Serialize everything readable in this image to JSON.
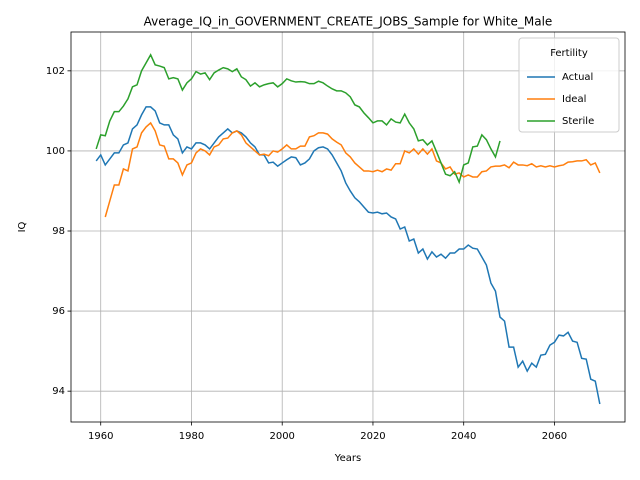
{
  "chart_data": {
    "type": "line",
    "title": "Average_IQ_in_GOVERNMENT_CREATE_JOBS_Sample for White_Male",
    "xlabel": "Years",
    "ylabel": "IQ",
    "x": [
      1959,
      1960,
      1961,
      1962,
      1963,
      1964,
      1965,
      1966,
      1967,
      1968,
      1969,
      1970,
      1971,
      1972,
      1973,
      1974,
      1975,
      1976,
      1977,
      1978,
      1979,
      1980,
      1981,
      1982,
      1983,
      1984,
      1985,
      1986,
      1987,
      1988,
      1989,
      1990,
      1991,
      1992,
      1993,
      1994,
      1995,
      1996,
      1997,
      1998,
      1999,
      2000,
      2001,
      2002,
      2003,
      2004,
      2005,
      2006,
      2007,
      2008,
      2009,
      2010,
      2011,
      2012,
      2013,
      2014,
      2015,
      2016,
      2017,
      2018,
      2019,
      2020,
      2021,
      2022,
      2023,
      2024,
      2025,
      2026,
      2027,
      2028,
      2029,
      2030,
      2031,
      2032,
      2033,
      2034,
      2035,
      2036,
      2037,
      2038,
      2039,
      2040,
      2041,
      2042,
      2043,
      2044,
      2045,
      2046,
      2047,
      2048,
      2049,
      2050,
      2051,
      2052,
      2053,
      2054,
      2055,
      2056,
      2057,
      2058,
      2059,
      2060,
      2061,
      2062,
      2063,
      2064,
      2065,
      2066,
      2067,
      2068,
      2069,
      2070
    ],
    "series": [
      {
        "name": "Actual",
        "color": "#1f77b4",
        "values": [
          99.75,
          99.9,
          99.65,
          99.8,
          99.95,
          99.95,
          100.15,
          100.2,
          100.55,
          100.65,
          100.9,
          101.1,
          101.1,
          101.0,
          100.7,
          100.65,
          100.65,
          100.4,
          100.3,
          99.95,
          100.1,
          100.05,
          100.2,
          100.2,
          100.15,
          100.05,
          100.2,
          100.35,
          100.45,
          100.55,
          100.45,
          100.5,
          100.45,
          100.35,
          100.2,
          100.1,
          99.9,
          99.9,
          99.7,
          99.72,
          99.62,
          99.7,
          99.78,
          99.85,
          99.83,
          99.65,
          99.7,
          99.8,
          100.0,
          100.08,
          100.1,
          100.05,
          99.9,
          99.7,
          99.5,
          99.2,
          99.0,
          98.83,
          98.73,
          98.6,
          98.47,
          98.45,
          98.47,
          98.43,
          98.45,
          98.35,
          98.3,
          98.05,
          98.1,
          97.75,
          97.8,
          97.45,
          97.55,
          97.3,
          97.48,
          97.35,
          97.42,
          97.32,
          97.45,
          97.45,
          97.55,
          97.55,
          97.65,
          97.57,
          97.55,
          97.35,
          97.15,
          96.7,
          96.5,
          95.85,
          95.75,
          95.1,
          95.1,
          94.6,
          94.75,
          94.5,
          94.7,
          94.6,
          94.9,
          94.92,
          95.15,
          95.22,
          95.4,
          95.38,
          95.47,
          95.25,
          95.22,
          94.82,
          94.8,
          94.3,
          94.25,
          93.68
        ]
      },
      {
        "name": "Ideal",
        "color": "#ff7f0e",
        "values": [
          null,
          null,
          98.35,
          98.75,
          99.15,
          99.15,
          99.55,
          99.5,
          100.05,
          100.1,
          100.45,
          100.6,
          100.7,
          100.5,
          100.15,
          100.12,
          99.8,
          99.8,
          99.7,
          99.4,
          99.65,
          99.7,
          99.95,
          100.05,
          100.0,
          99.9,
          100.1,
          100.15,
          100.3,
          100.32,
          100.45,
          100.5,
          100.4,
          100.2,
          100.1,
          100.0,
          99.9,
          99.92,
          99.88,
          100.0,
          99.97,
          100.05,
          100.15,
          100.05,
          100.05,
          100.12,
          100.12,
          100.35,
          100.38,
          100.45,
          100.45,
          100.42,
          100.3,
          100.22,
          100.15,
          99.95,
          99.85,
          99.7,
          99.6,
          99.5,
          99.5,
          99.48,
          99.52,
          99.48,
          99.55,
          99.52,
          99.68,
          99.68,
          100.0,
          99.95,
          100.05,
          99.92,
          100.05,
          99.92,
          100.05,
          99.75,
          99.7,
          99.55,
          99.6,
          99.42,
          99.45,
          99.35,
          99.4,
          99.35,
          99.35,
          99.48,
          99.5,
          99.6,
          99.62,
          99.62,
          99.65,
          99.58,
          99.72,
          99.65,
          99.65,
          99.63,
          99.68,
          99.6,
          99.63,
          99.6,
          99.63,
          99.6,
          99.63,
          99.65,
          99.72,
          99.73,
          99.75,
          99.75,
          99.78,
          99.65,
          99.7,
          99.45
        ]
      },
      {
        "name": "Sterile",
        "color": "#2ca02c",
        "values": [
          100.05,
          100.4,
          100.38,
          100.75,
          100.98,
          100.98,
          101.12,
          101.3,
          101.6,
          101.65,
          102.0,
          102.2,
          102.4,
          102.15,
          102.12,
          102.08,
          101.8,
          101.83,
          101.8,
          101.52,
          101.7,
          101.8,
          101.98,
          101.92,
          101.95,
          101.78,
          101.95,
          102.02,
          102.08,
          102.05,
          101.98,
          102.05,
          101.85,
          101.78,
          101.62,
          101.7,
          101.6,
          101.65,
          101.68,
          101.7,
          101.6,
          101.68,
          101.8,
          101.75,
          101.72,
          101.73,
          101.72,
          101.68,
          101.68,
          101.74,
          101.7,
          101.62,
          101.55,
          101.5,
          101.5,
          101.45,
          101.35,
          101.15,
          101.1,
          100.95,
          100.83,
          100.7,
          100.75,
          100.75,
          100.65,
          100.8,
          100.72,
          100.7,
          100.92,
          100.7,
          100.55,
          100.25,
          100.28,
          100.15,
          100.25,
          99.98,
          99.7,
          99.42,
          99.38,
          99.48,
          99.22,
          99.65,
          99.7,
          100.1,
          100.12,
          100.4,
          100.28,
          100.05,
          99.85,
          100.25,
          null,
          null,
          null,
          null,
          null,
          null,
          null,
          null,
          null,
          null,
          null,
          null,
          null,
          null,
          null,
          null,
          null,
          null,
          null,
          null,
          null,
          null
        ]
      }
    ],
    "xlim": [
      1953.45,
      2075.55
    ],
    "xticks": [
      1960,
      1980,
      2000,
      2020,
      2040,
      2060
    ],
    "ylim": [
      93.23,
      102.97
    ],
    "yticks": [
      94,
      96,
      98,
      100,
      102
    ],
    "grid": true,
    "legend_title": "Fertility",
    "legend_loc": "upper right"
  }
}
